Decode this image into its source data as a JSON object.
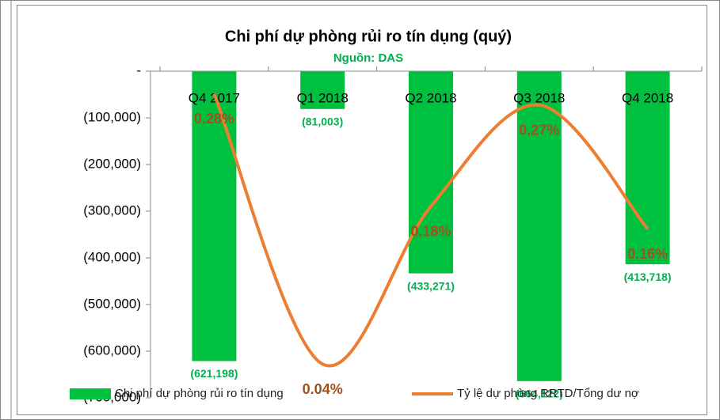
{
  "chart_data": {
    "type": "bar_line",
    "title": "Chi phí dự phòng rủi ro tín dụng (quý)",
    "subtitle": "Nguồn: DAS",
    "categories": [
      "Q4 2017",
      "Q1 2018",
      "Q2 2018",
      "Q3 2018",
      "Q4 2018"
    ],
    "series": [
      {
        "name": "Chi phí dự phòng rủi ro tín dụng",
        "type": "bar",
        "color": "#00c040",
        "values": [
          -621198,
          -81003,
          -433271,
          -664122,
          -413718
        ],
        "value_labels": [
          "(621,198)",
          "(81,003)",
          "(433,271)",
          "(664,122)",
          "(413,718)"
        ]
      },
      {
        "name": "Tỷ lệ dự phòng RRTD/Tổng dư nợ",
        "type": "line",
        "axis": "y2",
        "color": "#ed7d31",
        "values": [
          0.28,
          0.04,
          0.18,
          0.27,
          0.16
        ],
        "value_labels": [
          "0.28%",
          "0.04%",
          "0.18%",
          "0.27%",
          "0.16%"
        ]
      }
    ],
    "ylim": [
      -700000,
      0
    ],
    "yticks": [
      {
        "value": 0,
        "label": "-"
      },
      {
        "value": -100000,
        "label": "(100,000)"
      },
      {
        "value": -200000,
        "label": "(200,000)"
      },
      {
        "value": -300000,
        "label": "(300,000)"
      },
      {
        "value": -400000,
        "label": "(400,000)"
      },
      {
        "value": -500000,
        "label": "(500,000)"
      },
      {
        "value": -600000,
        "label": "(600,000)"
      },
      {
        "value": -700000,
        "label": "(700,000)"
      }
    ],
    "y2lim": [
      0.01,
      0.3
    ],
    "grid": false,
    "legend": "bottom"
  }
}
